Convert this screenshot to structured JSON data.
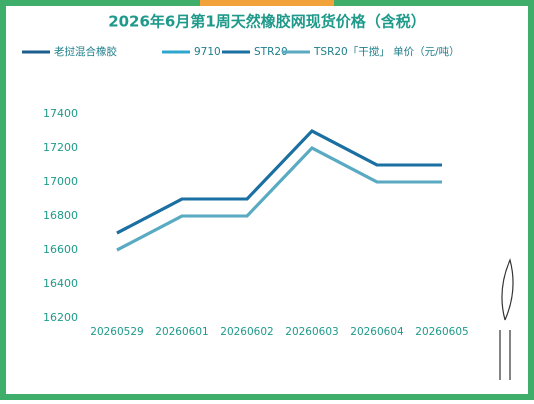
{
  "chart_data": {
    "type": "line",
    "title": "2026年6月第1周天然橡胶网现货价格（含税）",
    "categories": [
      "20260529",
      "20260601",
      "20260602",
      "20260603",
      "20260604",
      "20260605"
    ],
    "series": [
      {
        "name": "老挝混合橡胶",
        "color": "#1c5f8f",
        "values": [
          16700,
          16900,
          16900,
          17300,
          17100,
          17100
        ]
      },
      {
        "name": "9710",
        "color": "#2fa6cf",
        "values": [
          16600,
          16800,
          16800,
          17200,
          17000,
          17000
        ]
      },
      {
        "name": "STR20",
        "color": "#1a6fa3",
        "values": [
          16700,
          16900,
          16900,
          17300,
          17100,
          17100
        ]
      },
      {
        "name": "TSR20「干搅」 单价（元/吨）",
        "color": "#5aaac2",
        "values": [
          16600,
          16800,
          16800,
          17200,
          17000,
          17000
        ]
      }
    ],
    "ylim": [
      16200,
      17400
    ],
    "yticks": [
      16200,
      16400,
      16600,
      16800,
      17000,
      17200,
      17400
    ]
  }
}
